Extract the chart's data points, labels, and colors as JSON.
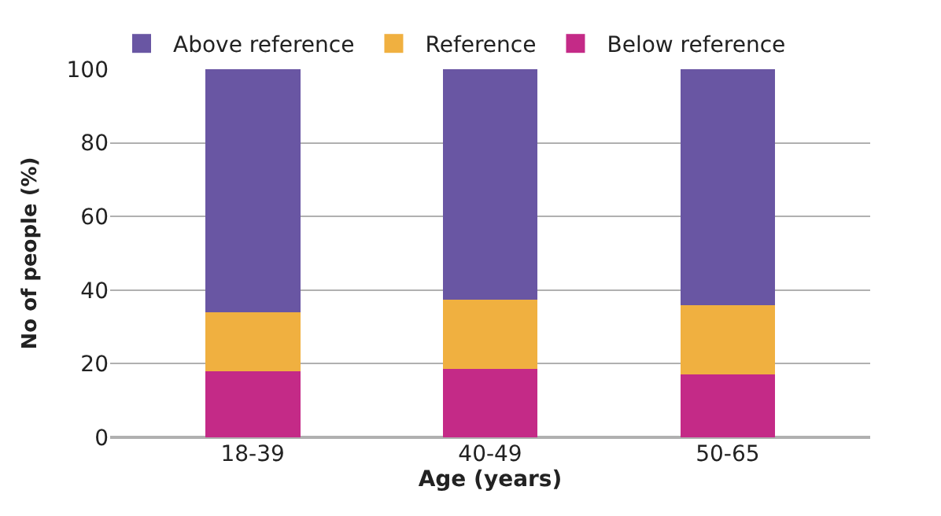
{
  "chart_data": {
    "type": "bar",
    "stacked": true,
    "xlabel": "Age (years)",
    "ylabel": "No of people (%)",
    "categories": [
      "18-39",
      "40-49",
      "50-65"
    ],
    "series": [
      {
        "name": "Below reference",
        "color": "#c42a87",
        "values": [
          18,
          18.5,
          17
        ]
      },
      {
        "name": "Reference",
        "color": "#f0b040",
        "values": [
          16,
          19,
          19
        ]
      },
      {
        "name": "Above reference",
        "color": "#6956a3",
        "values": [
          66,
          62.5,
          64
        ]
      }
    ],
    "ylim": [
      0,
      100
    ],
    "yticks": [
      0,
      20,
      40,
      60,
      80,
      100
    ],
    "grid": "y",
    "legend": "top left"
  }
}
